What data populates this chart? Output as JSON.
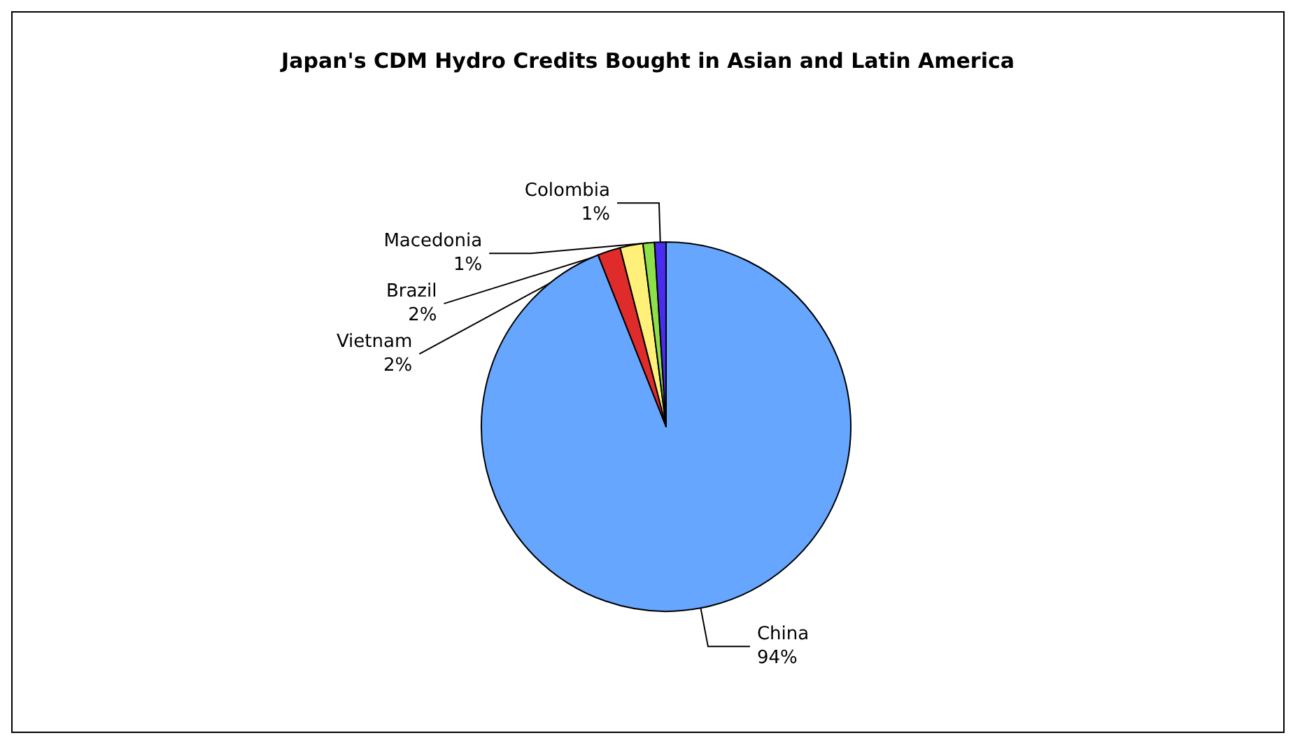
{
  "chart_data": {
    "type": "pie",
    "title": "Japan's CDM Hydro Credits Bought in Asian and Latin America",
    "categories": [
      "China",
      "Vietnam",
      "Brazil",
      "Macedonia",
      "Colombia"
    ],
    "values": [
      94,
      2,
      2,
      1,
      1
    ],
    "value_labels": [
      "94%",
      "2%",
      "2%",
      "1%",
      "1%"
    ],
    "colors": [
      "#66a6ff",
      "#e02b2b",
      "#fff07a",
      "#8ee04a",
      "#4a2cf0"
    ],
    "legend": false
  }
}
